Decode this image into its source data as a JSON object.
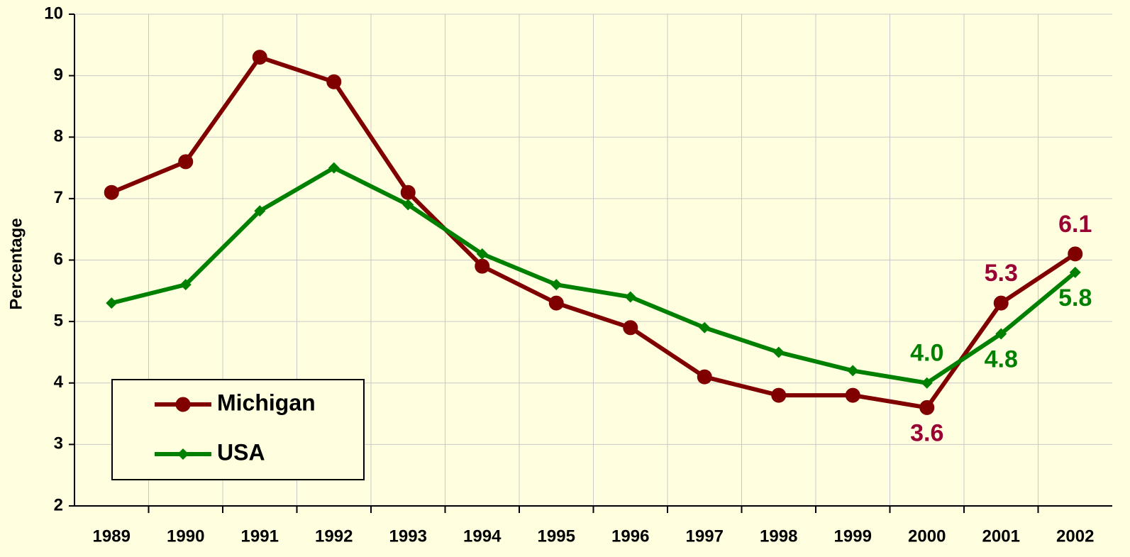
{
  "chart_data": {
    "type": "line",
    "y_label": "Percentage",
    "categories": [
      "1989",
      "1990",
      "1991",
      "1992",
      "1993",
      "1994",
      "1995",
      "1996",
      "1997",
      "1998",
      "1999",
      "2000",
      "2001",
      "2002"
    ],
    "series": [
      {
        "name": "Michigan",
        "color": "#800000",
        "label_color": "#990033",
        "marker": "circle",
        "values": [
          7.1,
          7.6,
          9.3,
          8.9,
          7.1,
          5.9,
          5.3,
          4.9,
          4.1,
          3.8,
          3.8,
          3.6,
          5.3,
          6.1
        ],
        "value_labels": [
          null,
          null,
          null,
          null,
          null,
          null,
          null,
          null,
          null,
          null,
          null,
          "3.6",
          "5.3",
          "6.1"
        ]
      },
      {
        "name": "USA",
        "color": "#008000",
        "label_color": "#008000",
        "marker": "diamond",
        "values": [
          5.3,
          5.6,
          6.8,
          7.5,
          6.9,
          6.1,
          5.6,
          5.4,
          4.9,
          4.5,
          4.2,
          4.0,
          4.8,
          5.8
        ],
        "value_labels": [
          null,
          null,
          null,
          null,
          null,
          null,
          null,
          null,
          null,
          null,
          null,
          "4.0",
          "4.8",
          "5.8"
        ]
      }
    ],
    "ylim": [
      2,
      10
    ],
    "yticks": [
      2,
      3,
      4,
      5,
      6,
      7,
      8,
      9,
      10
    ],
    "grid": true,
    "legend": "lower left"
  }
}
